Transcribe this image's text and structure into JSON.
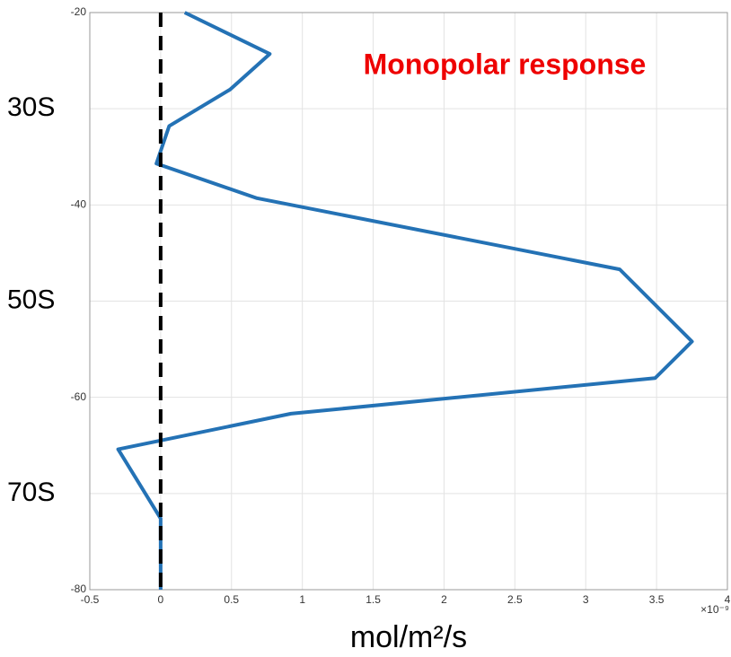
{
  "chart_data": {
    "type": "line",
    "xlabel": "mol/m²/s",
    "x_multiplier": "×10⁻⁹",
    "annotation": {
      "text": "Monopolar response",
      "color": "#ee0000"
    },
    "series": [
      {
        "color": "#2472b5",
        "values": [
          0.17,
          0.77,
          0.49,
          0.06,
          -0.03,
          0.68,
          3.24,
          3.75,
          3.49,
          0.92,
          -0.3,
          0,
          0
        ],
        "y": [
          -20,
          -24.3,
          -28,
          -31.8,
          -35.7,
          -39.3,
          -46.7,
          -54.2,
          -58,
          -61.7,
          -65.4,
          -72.6,
          -80
        ]
      }
    ],
    "reference_line": {
      "x": 0,
      "color": "#000000"
    },
    "xlim": [
      -0.5,
      4
    ],
    "xticks": [
      -0.5,
      0,
      0.5,
      1,
      1.5,
      2,
      2.5,
      3,
      3.5,
      4
    ],
    "ylim": [
      -80,
      -20
    ],
    "yticks": [
      -20,
      {
        "value": -30,
        "label": "30S"
      },
      -40,
      {
        "value": -50,
        "label": "50S"
      },
      -60,
      {
        "value": -70,
        "label": "70S"
      },
      -80
    ],
    "grid": true
  }
}
